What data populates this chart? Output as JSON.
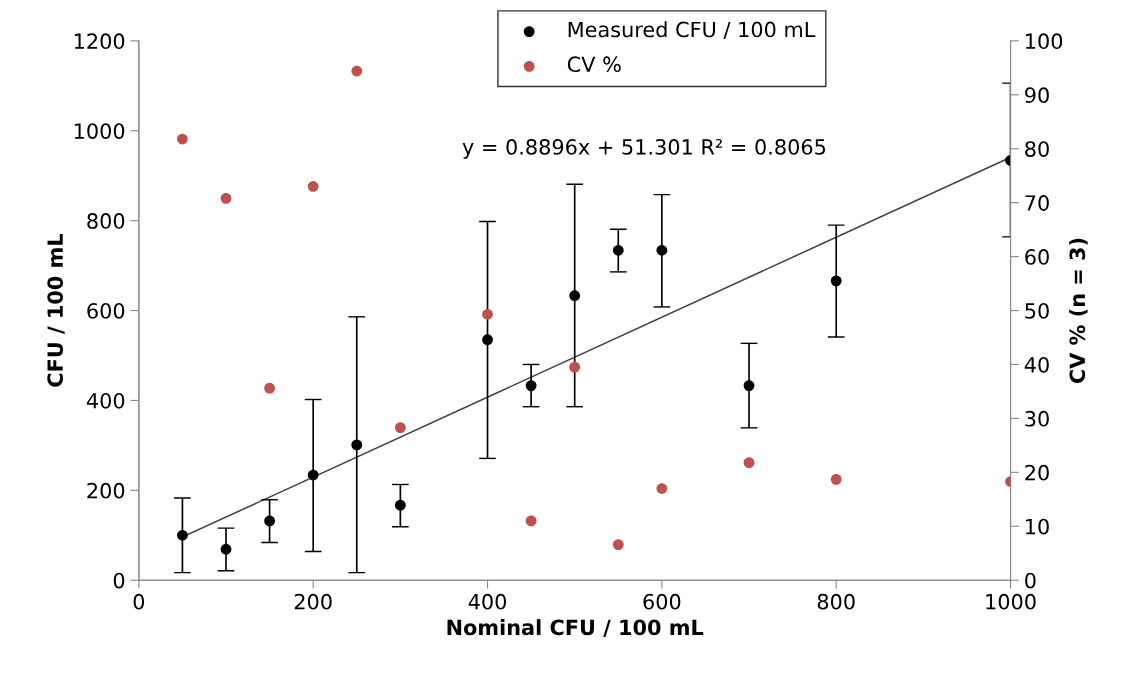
{
  "chart_data": {
    "type": "scatter",
    "xlabel": "Nominal CFU / 100 mL",
    "ylabel": "CFU / 100 mL",
    "y2label": "CV % (n = 3)",
    "xlim": [
      0,
      1000
    ],
    "xticks": [
      0,
      200,
      400,
      600,
      800,
      1000
    ],
    "ylim": [
      0,
      1200
    ],
    "yticks": [
      0,
      200,
      400,
      600,
      800,
      1000,
      1200
    ],
    "y2lim": [
      0,
      100
    ],
    "y2ticks": [
      0,
      10,
      20,
      30,
      40,
      50,
      60,
      70,
      80,
      90,
      100
    ],
    "grid": false,
    "legend": "top",
    "marker": "circle",
    "x": [
      50,
      100,
      150,
      200,
      250,
      300,
      400,
      450,
      500,
      550,
      600,
      700,
      800,
      1000
    ],
    "series": [
      {
        "name": "Measured CFU / 100 mL",
        "color": "#000000",
        "values": [
          100,
          69,
          132,
          234,
          301,
          167,
          535,
          433,
          633,
          734,
          734,
          433,
          666,
          934
        ],
        "errors": [
          [
            17,
            183
          ],
          [
            21,
            116
          ],
          [
            84,
            179
          ],
          [
            64,
            402
          ],
          [
            17,
            586
          ],
          [
            119,
            213
          ],
          [
            271,
            798
          ],
          [
            386,
            480
          ],
          [
            386,
            881
          ],
          [
            686,
            781
          ],
          [
            608,
            858
          ],
          [
            339,
            527
          ],
          [
            541,
            790
          ],
          [
            764,
            1106
          ]
        ]
      },
      {
        "name": "CV %",
        "color": "#c0504d",
        "type": "scatter",
        "axis": "y2",
        "values": [
          81.8,
          70.8,
          35.6,
          73.0,
          94.4,
          28.3,
          49.3,
          11.0,
          39.5,
          6.6,
          17.0,
          21.8,
          18.7,
          18.3
        ]
      },
      {
        "type": "line",
        "color": "#404040",
        "x": [
          50,
          1000
        ],
        "values": [
          96,
          941
        ],
        "line_style": "solid",
        "marker": "none"
      }
    ],
    "annotations": [
      "y = 0.8896x + 51.301 R² = 0.8065"
    ]
  }
}
